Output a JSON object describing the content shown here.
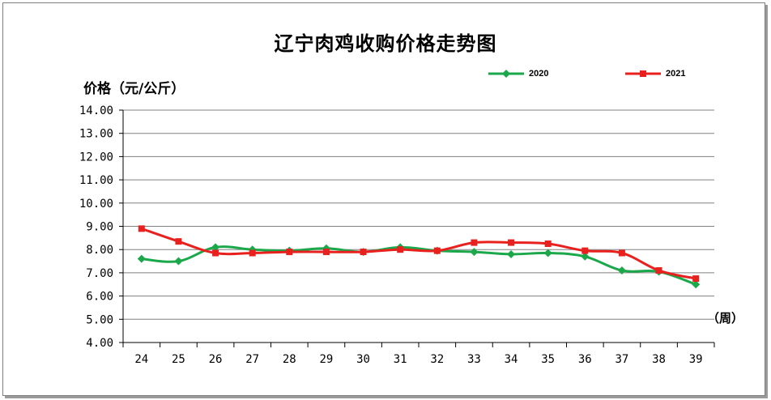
{
  "chart_data": {
    "type": "line",
    "title": "辽宁肉鸡收购价格走势图",
    "ylabel": "价格（元/公斤）",
    "xlabel": "（周）",
    "ylim": [
      4,
      14
    ],
    "yticks": [
      "4.00",
      "5.00",
      "6.00",
      "7.00",
      "8.00",
      "9.00",
      "10.00",
      "11.00",
      "12.00",
      "13.00",
      "14.00"
    ],
    "categories": [
      "24",
      "25",
      "26",
      "27",
      "28",
      "29",
      "30",
      "31",
      "32",
      "33",
      "34",
      "35",
      "36",
      "37",
      "38",
      "39"
    ],
    "grid": "horizontal",
    "legend": "top-right",
    "series": [
      {
        "name": "2020",
        "color": "#1aa84b",
        "marker": "diamond",
        "values": [
          7.6,
          7.5,
          8.1,
          8.0,
          7.95,
          8.05,
          7.9,
          8.1,
          7.95,
          7.9,
          7.8,
          7.85,
          7.7,
          7.1,
          7.05,
          6.5
        ]
      },
      {
        "name": "2021",
        "color": "#e8201e",
        "marker": "square",
        "values": [
          8.9,
          8.35,
          7.85,
          7.85,
          7.9,
          7.9,
          7.9,
          8.0,
          7.95,
          8.3,
          8.3,
          8.25,
          7.95,
          7.85,
          7.1,
          6.75
        ]
      }
    ]
  }
}
